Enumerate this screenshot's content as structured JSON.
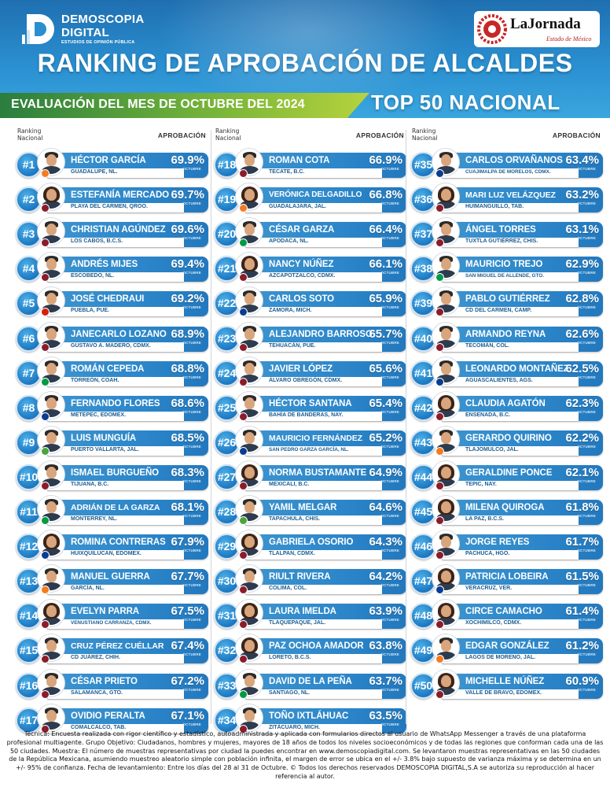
{
  "brand": {
    "logo_line1": "DEMOSCOPIA",
    "logo_line2": "DIGITAL",
    "logo_line3": "ESTUDIOS DE OPINIÓN PÚBLICA",
    "partner_name": "LaJornada",
    "partner_sub": "Estado de México"
  },
  "title": "RANKING DE APROBACIÓN DE ALCALDES",
  "subtitle": "EVALUACIÓN DEL MES DE OCTUBRE DEL 2024",
  "badge": "TOP 50 NACIONAL",
  "column_header_rank": "Ranking\nNacional",
  "column_header_approval": "APROBACIÓN",
  "month_tag": "OCTUBRE",
  "colors": {
    "accent_blue": "#2c86c9",
    "accent_green": "#6cae3a"
  },
  "ranking": [
    {
      "rank": "#1",
      "name": "HÉCTOR GARCÍA",
      "city": "GUADALUPE, NL.",
      "pct": "69.9%",
      "gender": "m",
      "party": "#f47b20"
    },
    {
      "rank": "#2",
      "name": "ESTEFANÍA MERCADO",
      "city": "PLAYA DEL CARMEN, QROO.",
      "pct": "69.7%",
      "gender": "f",
      "party": "#8b1c2b"
    },
    {
      "rank": "#3",
      "name": "CHRISTIAN AGÚNDEZ",
      "city": "LOS CABOS, B.C.S.",
      "pct": "69.6%",
      "gender": "m",
      "party": "#8b1c2b"
    },
    {
      "rank": "#4",
      "name": "ANDRÉS MIJES",
      "city": "ESCOBEDO, NL.",
      "pct": "69.4%",
      "gender": "m",
      "party": "#8b1c2b"
    },
    {
      "rank": "#5",
      "name": "JOSÉ CHEDRAUI",
      "city": "PUEBLA, PUE.",
      "pct": "69.2%",
      "gender": "m",
      "party": "#d81e05"
    },
    {
      "rank": "#6",
      "name": "JANECARLO LOZANO",
      "city": "GUSTAVO A. MADERO, CDMX.",
      "pct": "68.9%",
      "gender": "m",
      "party": "#8b1c2b"
    },
    {
      "rank": "#7",
      "name": "ROMÁN CEPEDA",
      "city": "TORREÓN, COAH.",
      "pct": "68.8%",
      "gender": "m",
      "party": "#009a44"
    },
    {
      "rank": "#8",
      "name": "FERNANDO FLORES",
      "city": "METEPEC, EDOMEX.",
      "pct": "68.6%",
      "gender": "m",
      "party": "#0a3d91"
    },
    {
      "rank": "#9",
      "name": "LUIS MUNGUÍA",
      "city": "PUERTO VALLARTA, JAL.",
      "pct": "68.5%",
      "gender": "m",
      "party": "#4aa53d"
    },
    {
      "rank": "#10",
      "name": "ISMAEL BURGUEÑO",
      "city": "TIJUANA, B.C.",
      "pct": "68.3%",
      "gender": "m",
      "party": "#8b1c2b"
    },
    {
      "rank": "#11",
      "name": "ADRIÁN DE LA GARZA",
      "city": "MONTERREY, NL.",
      "pct": "68.1%",
      "gender": "m",
      "party": "#009a44"
    },
    {
      "rank": "#12",
      "name": "ROMINA CONTRERAS",
      "city": "HUIXQUILUCAN, EDOMEX.",
      "pct": "67.9%",
      "gender": "f",
      "party": "#0a3d91"
    },
    {
      "rank": "#13",
      "name": "MANUEL GUERRA",
      "city": "GARCÍA, NL.",
      "pct": "67.7%",
      "gender": "m",
      "party": "#f47b20"
    },
    {
      "rank": "#14",
      "name": "EVELYN PARRA",
      "city": "VENUSTIANO CARRANZA, CDMX.",
      "pct": "67.5%",
      "gender": "f",
      "party": "#8b1c2b"
    },
    {
      "rank": "#15",
      "name": "CRUZ PÉREZ CUÉLLAR",
      "city": "CD JUÁREZ, CHIH.",
      "pct": "67.4%",
      "gender": "m",
      "party": "#8b1c2b"
    },
    {
      "rank": "#16",
      "name": "CÉSAR PRIETO",
      "city": "SALAMANCA, GTO.",
      "pct": "67.2%",
      "gender": "m",
      "party": "#8b1c2b"
    },
    {
      "rank": "#17",
      "name": "OVIDIO PERALTA",
      "city": "COMALCALCO, TAB.",
      "pct": "67.1%",
      "gender": "m",
      "party": "#8b1c2b"
    },
    {
      "rank": "#18",
      "name": "ROMAN COTA",
      "city": "TECATE, B.C.",
      "pct": "66.9%",
      "gender": "m",
      "party": "#8b1c2b"
    },
    {
      "rank": "#19",
      "name": "VERÓNICA DELGADILLO",
      "city": "GUADALAJARA, JAL.",
      "pct": "66.8%",
      "gender": "f",
      "party": "#f47b20"
    },
    {
      "rank": "#20",
      "name": "CÉSAR GARZA",
      "city": "APODACA, NL.",
      "pct": "66.4%",
      "gender": "m",
      "party": "#009a44"
    },
    {
      "rank": "#21",
      "name": "NANCY NÚÑEZ",
      "city": "AZCAPOTZALCO, CDMX.",
      "pct": "66.1%",
      "gender": "f",
      "party": "#8b1c2b"
    },
    {
      "rank": "#22",
      "name": "CARLOS SOTO",
      "city": "ZAMORA, MICH.",
      "pct": "65.9%",
      "gender": "m",
      "party": "#0a3d91"
    },
    {
      "rank": "#23",
      "name": "ALEJANDRO BARROSO",
      "city": "TEHUACÁN, PUE.",
      "pct": "65.7%",
      "gender": "m",
      "party": "#8b1c2b"
    },
    {
      "rank": "#24",
      "name": "JAVIER LÓPEZ",
      "city": "ÁLVARO OBREGÓN, CDMX.",
      "pct": "65.6%",
      "gender": "m",
      "party": "#8b1c2b"
    },
    {
      "rank": "#25",
      "name": "HÉCTOR SANTANA",
      "city": "BAHÍA DE BANDERAS, NAY.",
      "pct": "65.4%",
      "gender": "m",
      "party": "#8b1c2b"
    },
    {
      "rank": "#26",
      "name": "MAURICIO FERNÁNDEZ",
      "city": "SAN PEDRO GARZA GARCÍA, NL.",
      "pct": "65.2%",
      "gender": "m",
      "party": "#0a3d91"
    },
    {
      "rank": "#27",
      "name": "NORMA BUSTAMANTE",
      "city": "MEXICALI, B.C.",
      "pct": "64.9%",
      "gender": "f",
      "party": "#8b1c2b"
    },
    {
      "rank": "#28",
      "name": "YAMIL MELGAR",
      "city": "TAPACHULA, CHIS.",
      "pct": "64.6%",
      "gender": "m",
      "party": "#4aa53d"
    },
    {
      "rank": "#29",
      "name": "GABRIELA OSORIO",
      "city": "TLALPAN, CDMX.",
      "pct": "64.3%",
      "gender": "f",
      "party": "#8b1c2b"
    },
    {
      "rank": "#30",
      "name": "RIULT RIVERA",
      "city": "COLIMA, COL.",
      "pct": "64.2%",
      "gender": "m",
      "party": "#8b1c2b"
    },
    {
      "rank": "#31",
      "name": "LAURA IMELDA",
      "city": "TLAQUEPAQUE, JAL.",
      "pct": "63.9%",
      "gender": "f",
      "party": "#8b1c2b"
    },
    {
      "rank": "#32",
      "name": "PAZ OCHOA AMADOR",
      "city": "LORETO, B.C.S.",
      "pct": "63.8%",
      "gender": "f",
      "party": "#8b1c2b"
    },
    {
      "rank": "#33",
      "name": "DAVID DE LA PEÑA",
      "city": "SANTIAGO, NL.",
      "pct": "63.7%",
      "gender": "m",
      "party": "#009a44"
    },
    {
      "rank": "#34",
      "name": "TOÑO IXTLÁHUAC",
      "city": "ZITÁCUARO, MICH.",
      "pct": "63.5%",
      "gender": "m",
      "party": "#8b1c2b"
    },
    {
      "rank": "#35",
      "name": "CARLOS ORVAÑANOS",
      "city": "CUAJIMALPA DE MORELOS, CDMX.",
      "pct": "63.4%",
      "gender": "m",
      "party": "#0a3d91"
    },
    {
      "rank": "#36",
      "name": "MARI LUZ VELÁZQUEZ",
      "city": "HUIMANGUILLO, TAB.",
      "pct": "63.2%",
      "gender": "f",
      "party": "#8b1c2b"
    },
    {
      "rank": "#37",
      "name": "ÁNGEL TORRES",
      "city": "TUXTLA GUTIÉRREZ, CHIS.",
      "pct": "63.1%",
      "gender": "m",
      "party": "#8b1c2b"
    },
    {
      "rank": "#38",
      "name": "MAURICIO TREJO",
      "city": "SAN MIGUEL DE ALLENDE, GTO.",
      "pct": "62.9%",
      "gender": "m",
      "party": "#009a44"
    },
    {
      "rank": "#39",
      "name": "PABLO GUTIÉRREZ",
      "city": "CD DEL CARMEN, CAMP.",
      "pct": "62.8%",
      "gender": "m",
      "party": "#8b1c2b"
    },
    {
      "rank": "#40",
      "name": "ARMANDO REYNA",
      "city": "TECOMÁN, COL.",
      "pct": "62.6%",
      "gender": "m",
      "party": "#8b1c2b"
    },
    {
      "rank": "#41",
      "name": "LEONARDO MONTAÑEZ",
      "city": "AGUASCALIENTES, AGS.",
      "pct": "62.5%",
      "gender": "m",
      "party": "#0a3d91"
    },
    {
      "rank": "#42",
      "name": "CLAUDIA AGATÓN",
      "city": "ENSENADA, B.C.",
      "pct": "62.3%",
      "gender": "f",
      "party": "#8b1c2b"
    },
    {
      "rank": "#43",
      "name": "GERARDO QUIRINO",
      "city": "TLAJOMULCO, JAL.",
      "pct": "62.2%",
      "gender": "m",
      "party": "#f47b20"
    },
    {
      "rank": "#44",
      "name": "GERALDINE PONCE",
      "city": "TEPIC, NAY.",
      "pct": "62.1%",
      "gender": "f",
      "party": "#8b1c2b"
    },
    {
      "rank": "#45",
      "name": "MILENA QUIROGA",
      "city": "LA PAZ, B.C.S.",
      "pct": "61.8%",
      "gender": "f",
      "party": "#8b1c2b"
    },
    {
      "rank": "#46",
      "name": "JORGE REYES",
      "city": "PACHUCA, HGO.",
      "pct": "61.7%",
      "gender": "m",
      "party": "#8b1c2b"
    },
    {
      "rank": "#47",
      "name": "PATRICIA LOBEIRA",
      "city": "VERACRUZ, VER.",
      "pct": "61.5%",
      "gender": "f",
      "party": "#0a3d91"
    },
    {
      "rank": "#48",
      "name": "CIRCE CAMACHO",
      "city": "XOCHIMILCO, CDMX.",
      "pct": "61.4%",
      "gender": "f",
      "party": "#8b1c2b"
    },
    {
      "rank": "#49",
      "name": "EDGAR GONZÁLEZ",
      "city": "LAGOS DE MORENO, JAL.",
      "pct": "61.2%",
      "gender": "m",
      "party": "#f47b20"
    },
    {
      "rank": "#50",
      "name": "MICHELLE NÚÑEZ",
      "city": "VALLE DE BRAVO, EDOMEX.",
      "pct": "60.9%",
      "gender": "f",
      "party": "#8b1c2b"
    }
  ],
  "footer": "Técnica: Encuesta realizada con rigor científico y estadístico, autoadministrada y aplicada con formularios directos al usuario de WhatsApp Messenger a través de una plataforma profesional multiagente. Grupo Objetivo: Ciudadanos, hombres y mujeres, mayores de 18 años de todos los niveles socioeconómicos y de todas las regiones que conforman cada una de las 50 ciudades. Muestra: El número de muestras representativas por ciudad la puedes encontrar en www.demoscopiadigital.com. Se levantaron muestras representativas en las 50 ciudades de la República Mexicana, asumiendo muestreo aleatorio simple con población infinita, el margen de error se ubica en el +/- 3.8% bajo supuesto de varianza máxima y se determina en un +/- 95% de confianza. Fecha de levantamiento: Entre los días del 28 al 31 de Octubre. © Todos los derechos reservados DEMOSCOPIA DIGITAL,S.A se autoriza su reproducción al hacer referencia al autor."
}
